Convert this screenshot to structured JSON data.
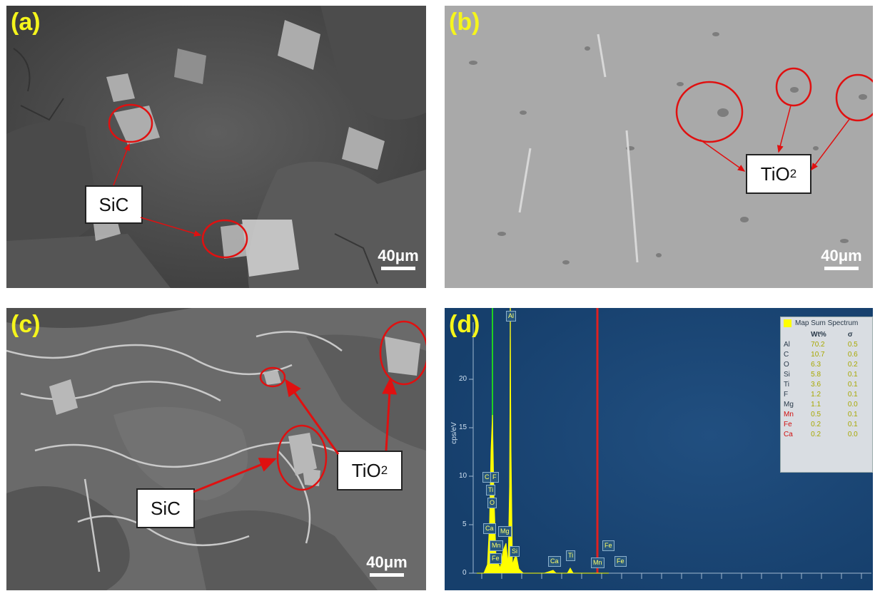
{
  "panels": {
    "a": {
      "label": "(a)",
      "scale": "40μm",
      "tags": {
        "sic": "SiC"
      }
    },
    "b": {
      "label": "(b)",
      "scale": "40μm",
      "tags": {
        "tio2_main": "TiO",
        "tio2_sub": "2"
      }
    },
    "c": {
      "label": "(c)",
      "scale": "40μm",
      "tags": {
        "sic": "SiC",
        "tio2_main": "TiO",
        "tio2_sub": "2"
      }
    },
    "d": {
      "label": "(d)",
      "y_axis_label": "cps/eV",
      "y_ticks": [
        "20",
        "15",
        "10",
        "5",
        "0"
      ],
      "legend": {
        "title": "Map Sum Spectrum",
        "col_wt": "Wt%",
        "col_sigma": "σ",
        "rows": [
          {
            "el": "Al",
            "wt": "70.2",
            "s": "0.5"
          },
          {
            "el": "C",
            "wt": "10.7",
            "s": "0.6"
          },
          {
            "el": "O",
            "wt": "6.3",
            "s": "0.2"
          },
          {
            "el": "Si",
            "wt": "5.8",
            "s": "0.1"
          },
          {
            "el": "Ti",
            "wt": "3.6",
            "s": "0.1"
          },
          {
            "el": "F",
            "wt": "1.2",
            "s": "0.1"
          },
          {
            "el": "Mg",
            "wt": "1.1",
            "s": "0.0"
          },
          {
            "el": "Mn",
            "wt": "0.5",
            "s": "0.1"
          },
          {
            "el": "Fe",
            "wt": "0.2",
            "s": "0.1"
          },
          {
            "el": "Ca",
            "wt": "0.2",
            "s": "0.0"
          }
        ]
      },
      "peaks": {
        "al": "Al",
        "c": "C",
        "f": "F",
        "ti_a": "Ti",
        "o": "O",
        "ca_a": "Ca",
        "mn_a": "Mn",
        "fe_a": "Fe",
        "mg": "Mg",
        "si": "Si",
        "ca_b": "Ca",
        "ti_b": "Ti",
        "mn_b": "Mn",
        "fe_b": "Fe",
        "fe_c": "Fe"
      },
      "colors": {
        "background": "#1a4a7a",
        "spectrum": "#ffff00",
        "al_line": "#f0f020",
        "c_line": "#20d020",
        "mn_line": "#e02020"
      }
    }
  },
  "colors": {
    "label": "#f5f51c",
    "annotation": "#e01010"
  }
}
